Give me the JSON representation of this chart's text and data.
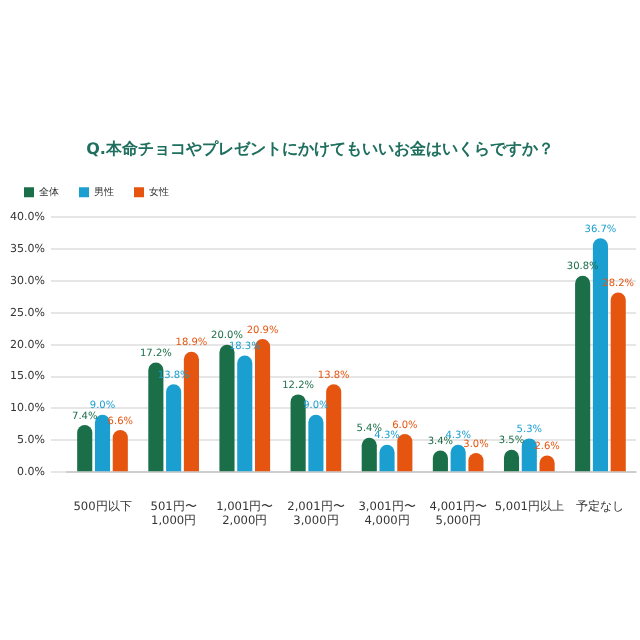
{
  "chart_data": {
    "type": "bar",
    "title": "Q.本命チョコやプレゼントにかけてもいいお金はいくらですか？",
    "categories": [
      "500円以下",
      "501円〜\n1,000円",
      "1,001円〜\n2,000円",
      "2,001円〜\n3,000円",
      "3,001円〜\n4,000円",
      "4,001円〜\n5,000円",
      "5,001円以上",
      "予定なし"
    ],
    "series": [
      {
        "name": "全体",
        "color": "#1a6e48",
        "values": [
          7.4,
          17.2,
          20.0,
          12.2,
          5.4,
          3.4,
          3.5,
          30.8
        ],
        "value_labels": [
          "7.4%",
          "17.2%",
          "20.0%",
          "12.2%",
          "5.4%",
          "3.4%",
          "3.5%",
          "30.8%"
        ]
      },
      {
        "name": "男性",
        "color": "#1a9fd0",
        "values": [
          9.0,
          13.8,
          18.3,
          9.0,
          4.3,
          4.3,
          5.3,
          36.7
        ],
        "value_labels": [
          "9.0%",
          "13.8%",
          "18.3%",
          "9.0%",
          "4.3%",
          "4.3%",
          "5.3%",
          "36.7%"
        ]
      },
      {
        "name": "女性",
        "color": "#e5550f",
        "values": [
          6.6,
          18.9,
          20.9,
          13.8,
          6.0,
          3.0,
          2.6,
          28.2
        ],
        "value_labels": [
          "6.6%",
          "18.9%",
          "20.9%",
          "13.8%",
          "6.0%",
          "3.0%",
          "2.6%",
          "28.2%"
        ]
      }
    ],
    "ylim": [
      0,
      40
    ],
    "yticks": [
      {
        "value": 0,
        "label": "0.0%"
      },
      {
        "value": 5,
        "label": "5.0%"
      },
      {
        "value": 10,
        "label": "10.0%"
      },
      {
        "value": 15,
        "label": "15.0%"
      },
      {
        "value": 20,
        "label": "20.0%"
      },
      {
        "value": 25,
        "label": "25.0%"
      },
      {
        "value": 30,
        "label": "30.0%"
      },
      {
        "value": 35,
        "label": "35.0%"
      },
      {
        "value": 40,
        "label": "40.0%"
      }
    ],
    "grid": "y",
    "legend": "top left"
  }
}
